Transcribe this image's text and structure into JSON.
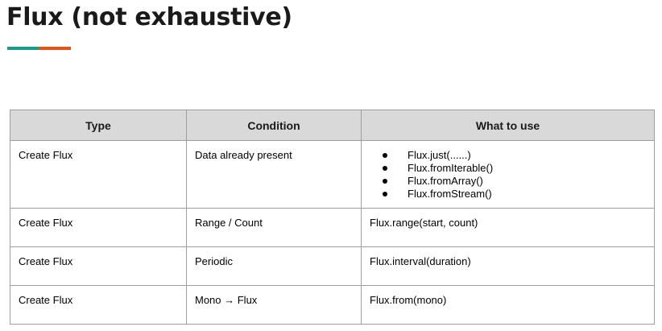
{
  "slide": {
    "title": "Flux (not exhaustive)",
    "accent_colors": [
      "#1a9a8a",
      "#e0541c"
    ]
  },
  "table": {
    "headers": [
      "Type",
      "Condition",
      "What to use"
    ],
    "rows": [
      {
        "type": "Create Flux",
        "condition": "Data already present",
        "what_to_use": [
          "Flux.just(......)",
          "Flux.fromIterable()",
          "Flux.fromArray()",
          "Flux.fromStream()"
        ]
      },
      {
        "type": "Create Flux",
        "condition": "Range / Count",
        "what_to_use": "Flux.range(start, count)"
      },
      {
        "type": "Create Flux",
        "condition": "Periodic",
        "what_to_use": "Flux.interval(duration)"
      },
      {
        "type": "Create Flux",
        "condition": "Mono → Flux",
        "what_to_use": "Flux.from(mono)"
      }
    ]
  }
}
